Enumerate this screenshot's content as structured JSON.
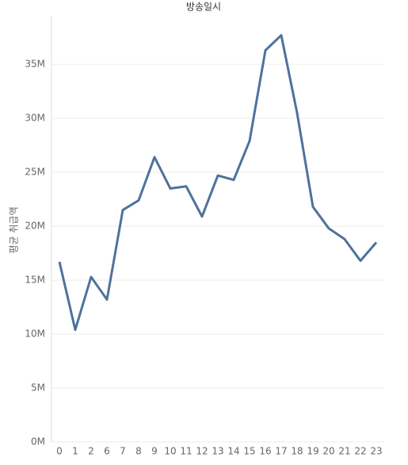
{
  "chart_data": {
    "type": "line",
    "title": "방송일시",
    "y_label": "평균 취급액",
    "categories": [
      "0",
      "1",
      "2",
      "6",
      "7",
      "8",
      "9",
      "10",
      "11",
      "12",
      "13",
      "14",
      "15",
      "16",
      "17",
      "18",
      "19",
      "20",
      "21",
      "22",
      "23"
    ],
    "series": [
      {
        "name": "평균 취급액",
        "color": "#4e729c",
        "values": [
          16700000,
          10400000,
          15300000,
          13200000,
          21500000,
          22400000,
          26400000,
          23500000,
          23700000,
          20900000,
          24700000,
          24300000,
          27900000,
          36300000,
          37700000,
          30500000,
          21800000,
          19800000,
          18800000,
          16800000,
          18500000
        ]
      }
    ],
    "ylim": [
      0,
      39500000
    ],
    "yticks": [
      {
        "value": 0,
        "label": "0M"
      },
      {
        "value": 5000000,
        "label": "5M"
      },
      {
        "value": 10000000,
        "label": "10M"
      },
      {
        "value": 15000000,
        "label": "15M"
      },
      {
        "value": 20000000,
        "label": "20M"
      },
      {
        "value": 25000000,
        "label": "25M"
      },
      {
        "value": 30000000,
        "label": "30M"
      },
      {
        "value": 35000000,
        "label": "35M"
      }
    ],
    "grid": true
  }
}
